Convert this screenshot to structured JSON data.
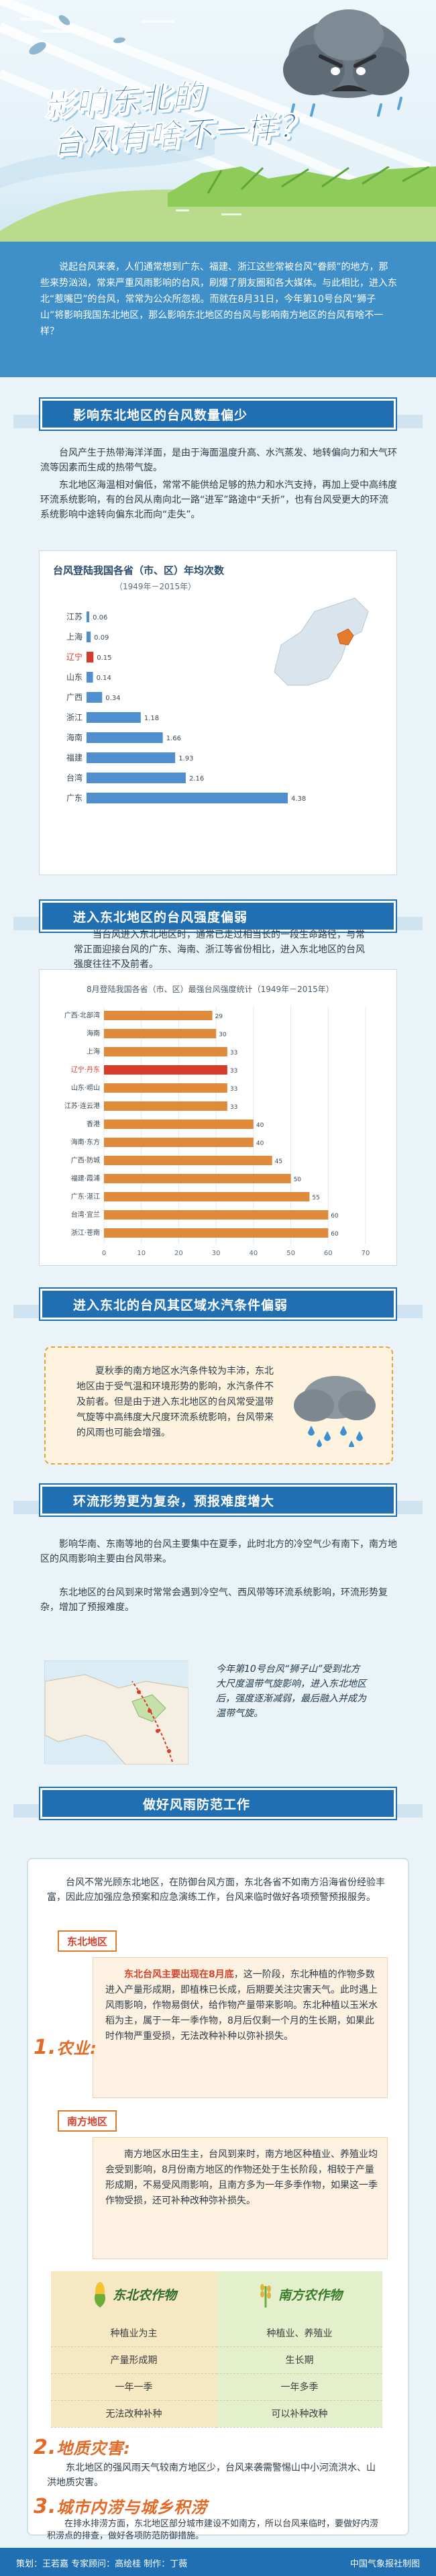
{
  "hero": {
    "title_line1": "影响东北的",
    "title_line2": "台风有啥不一样？"
  },
  "intro": {
    "text": "说起台风来袭，人们通常想到广东、福建、浙江这些常被台风“眷顾”的地方，那些来势汹汹，常来严重风雨影响的台风，刷爆了朋友圈和各大媒体。与此相比，进入东北“惹嘴巴”的台风，常常为公众所忽视。而就在8月31日，今年第10号台风“狮子山”将影响我国东北地区，那么影响东北地区的台风与影响南方地区的台风有啥不一样？"
  },
  "section1": {
    "heading": "影响东北地区的台风数量偏少",
    "para1": "台风产生于热带海洋洋面，是由于海面温度升高、水汽蒸发、地转偏向力和大气环流等因素而生成的热带气旋。",
    "para2": "东北地区海温相对偏低，常常不能供给足够的热力和水汽支持，再加上受中高纬度环流系统影响，有的台风从南向北一路“进军”路途中“夭折”，也有台风受更大的环流系统影响中途转向偏东北而向“走失”。"
  },
  "chart1": {
    "title": "台风登陆我国各省（市、区）年均次数",
    "subtitle": "（1949年－2015年）"
  },
  "chart_data": [
    {
      "type": "bar",
      "title": "台风登陆我国各省（市、区）年均次数",
      "subtitle": "（1949年－2015年）",
      "categories": [
        "江苏",
        "上海",
        "辽宁",
        "山东",
        "广西",
        "浙江",
        "海南",
        "福建",
        "台湾",
        "广东"
      ],
      "values": [
        0.06,
        0.09,
        0.15,
        0.14,
        0.34,
        1.18,
        1.66,
        1.93,
        2.16,
        4.38
      ],
      "highlight": "辽宁",
      "orientation": "horizontal"
    },
    {
      "type": "bar",
      "title": "8月登陆我国各省（市、区）最强台风强度统计（1949年－2015年）",
      "categories": [
        "广西·北部湾",
        "海南",
        "上海",
        "辽宁·丹东",
        "山东·崂山",
        "江苏·连云港",
        "香港",
        "海南·东方",
        "广西·防城",
        "福建·霞浦",
        "广东·湛江",
        "台湾·宜兰",
        "浙江·苍南"
      ],
      "values": [
        29,
        30,
        33,
        33,
        33,
        33,
        40,
        40,
        45,
        50,
        55,
        60,
        60
      ],
      "highlight": "辽宁·丹东",
      "xlim": [
        0,
        70
      ],
      "orientation": "horizontal"
    }
  ],
  "section2": {
    "heading": "进入东北地区的台风强度偏弱",
    "para": "当台风进入东北地区时，通常已走过相当长的一段生命路径，与常常正面迎接台风的广东、海南、浙江等省份相比，进入东北地区的台风强度往往不及前者。"
  },
  "section3": {
    "heading": "进入东北的台风其区域水汽条件偏弱",
    "para": "夏秋季的南方地区水汽条件较为丰沛，东北地区由于受气温和环境形势的影响，水汽条件不及前者。但是由于进入东北地区的台风常受温带气旋等中高纬度大尺度环流系统影响，台风带来的风雨也可能会增强。"
  },
  "section4": {
    "heading": "环流形势更为复杂，预报难度增大",
    "para1": "影响华南、东南等地的台风主要集中在夏季，此时北方的冷空气少有南下，南方地区的风雨影响主要由台风带来。",
    "para2": "东北地区的台风到来时常常会遇到冷空气、西风带等环流系统影响，环流形势复杂，增加了预报难度。",
    "map_note": "今年第10号台风“狮子山”受到北方大尺度温带气旋影响，进入东北地区后，强度逐渐减弱，最后融入并成为温带气旋。"
  },
  "section5": {
    "heading": "做好风雨防范工作",
    "intro": "台风不常光顾东北地区，在防御台风方面，东北各省不如南方沿海省份经验丰富，因此应加强应急预案和应急演练工作，台风来临时做好各项预警预报服务。",
    "cat1_num": "1.",
    "cat1_label": "农业:",
    "north_tag": "东北地区",
    "north_lead": "东北台风主要出现在8月底",
    "north_text": "，这一阶段，东北种植的作物多数进入产量形成期，即植株已长成，后期要关注灾害天气。此时遇上风雨影响，作物易倒伏，给作物产量带来影响。东北种植以玉米水稻为主，属于一年一季作物，8月后仅剩一个月的生长期，如果此时作物严重受损，无法改种补种以弥补损失。",
    "south_tag": "南方地区",
    "south_text": "南方地区水田生主，台风到来时，南方地区种植业、养殖业均会受到影响，8月份南方地区的作物还处于生长阶段，相较于产量形成期，不易受风雨影响，且南方多为一年多季作物，如果这一季作物受损，还可补种改种弥补损失。",
    "table": {
      "left_head": "东北农作物",
      "right_head": "南方农作物",
      "rows": [
        [
          "种植业为主",
          "种植业、养殖业"
        ],
        [
          "产量形成期",
          "生长期"
        ],
        [
          "一年一季",
          "一年多季"
        ],
        [
          "无法改种补种",
          "可以补种改种"
        ]
      ]
    },
    "cat2_num": "2.",
    "cat2_label": "地质灾害:",
    "cat2_text": "东北地区的强风雨天气较南方地区少，台风来袭需警惕山中小河流洪水、山洪地质灾害。",
    "cat3_num": "3.",
    "cat3_label": "城市内涝与城乡积涝",
    "cat3_text": "在排水排涝方面，东北地区部分城市建设不如南方，所以台风来临时，要做好内涝积涝点的排查，做好各项防范防御措施。"
  },
  "footer": {
    "left": "策划：王若嘉  专家顾问：高绘桂  制作：丁薇",
    "right": "中国气象报社制图"
  },
  "colors": {
    "accent": "#1f6fb2",
    "highlight_bar": "#d63c2a",
    "bar": "#4f8fcf",
    "orange": "#e08a3c"
  }
}
